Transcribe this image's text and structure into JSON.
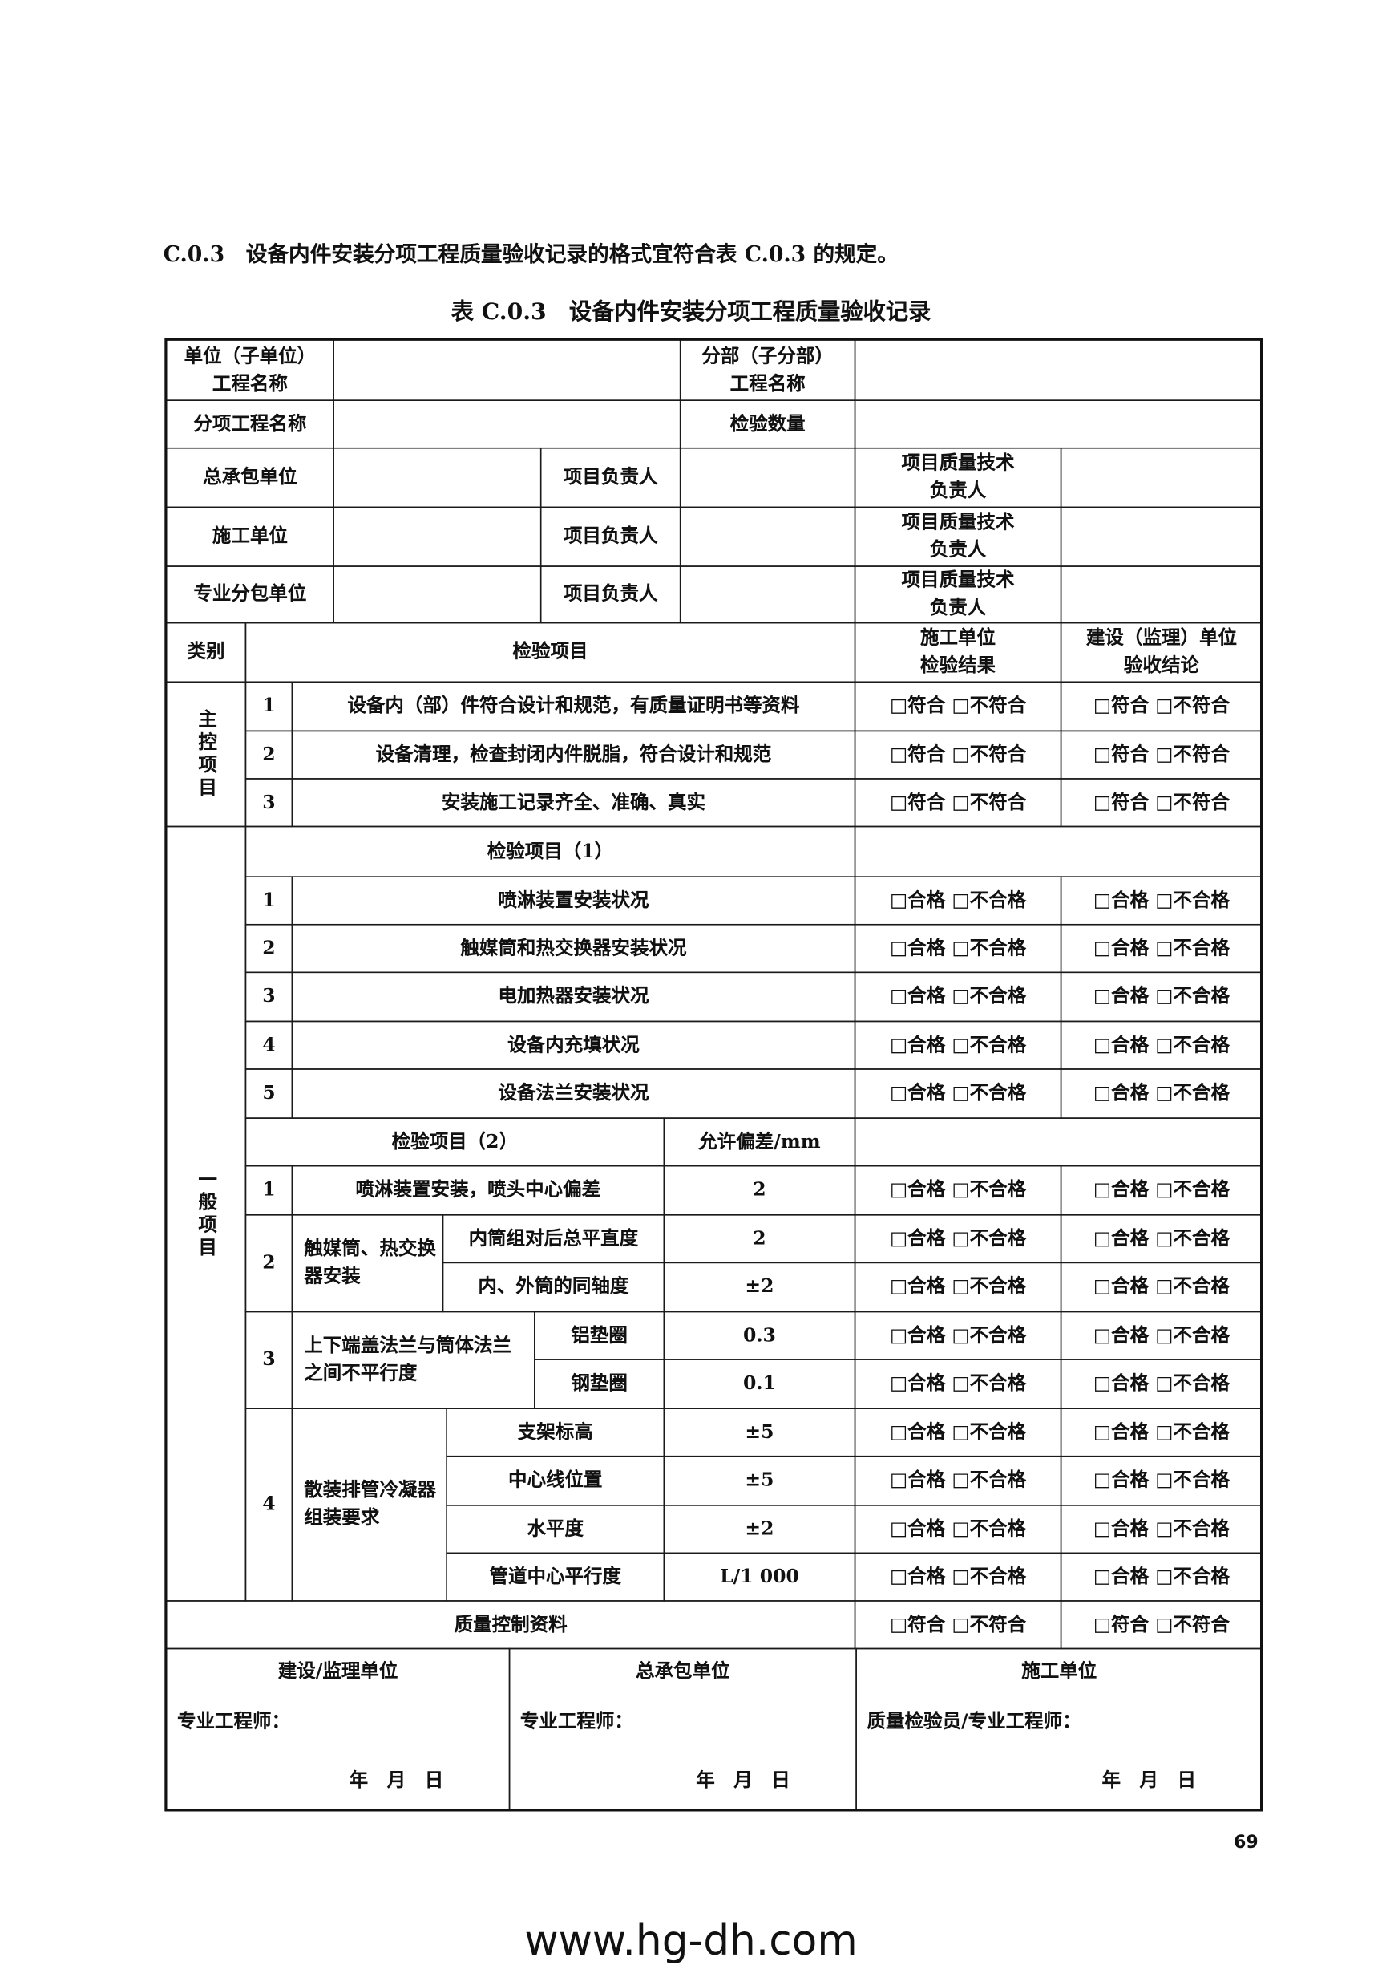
{
  "heading": "C.0.3　设备内件安装分项工程质量验收记录的格式宜符合表 C.0.3 的规定。",
  "table_title": "表 C.0.3　设备内件安装分项工程质量验收记录",
  "header": {
    "unit_label": "单位（子单位）\n工程名称",
    "sub_label": "分部（子分部）\n工程名称",
    "item_name_label": "分项工程名称",
    "qty_label": "检验数量",
    "rows": [
      {
        "org": "总承包单位",
        "pm": "项目负责人",
        "tech": "项目质量技术\n负责人"
      },
      {
        "org": "施工单位",
        "pm": "项目负责人",
        "tech": "项目质量技术\n负责人"
      },
      {
        "org": "专业分包单位",
        "pm": "项目负责人",
        "tech": "项目质量技术\n负责人"
      }
    ]
  },
  "columns": {
    "category": "类别",
    "item": "检验项目",
    "contractor": "施工单位\n检验结果",
    "supervisor": "建设（监理）单位\n验收结论"
  },
  "options": {
    "conform": "□符合 □不符合",
    "qualified": "□合格 □不合格"
  },
  "main": {
    "label": "主控项目",
    "items": [
      {
        "no": "1",
        "text": "设备内（部）件符合设计和规范，有质量证明书等资料"
      },
      {
        "no": "2",
        "text": "设备清理，检查封闭内件脱脂，符合设计和规范"
      },
      {
        "no": "3",
        "text": "安装施工记录齐全、准确、真实"
      }
    ]
  },
  "general": {
    "label": "一般项目",
    "group1": {
      "title": "检验项目（1）",
      "items": [
        {
          "no": "1",
          "text": "喷淋装置安装状况"
        },
        {
          "no": "2",
          "text": "触媒筒和热交换器安装状况"
        },
        {
          "no": "3",
          "text": "电加热器安装状况"
        },
        {
          "no": "4",
          "text": "设备内充填状况"
        },
        {
          "no": "5",
          "text": "设备法兰安装状况"
        }
      ]
    },
    "group2": {
      "title": "检验项目（2）",
      "tolerance_header": "允许偏差/mm",
      "item1": {
        "no": "1",
        "text": "喷淋装置安装，喷头中心偏差",
        "tol": "2"
      },
      "item2": {
        "no": "2",
        "text": "触媒筒、热交换器安装",
        "subs": [
          {
            "text": "内筒组对后总平直度",
            "tol": "2"
          },
          {
            "text": "内、外筒的同轴度",
            "tol": "±2"
          }
        ]
      },
      "item3": {
        "no": "3",
        "text": "上下端盖法兰与筒体法兰之间不平行度",
        "subs": [
          {
            "text": "铝垫圈",
            "tol": "0.3"
          },
          {
            "text": "钢垫圈",
            "tol": "0.1"
          }
        ]
      },
      "item4": {
        "no": "4",
        "text": "散装排管冷凝器组装要求",
        "subs": [
          {
            "text": "支架标高",
            "tol": "±5"
          },
          {
            "text": "中心线位置",
            "tol": "±5"
          },
          {
            "text": "水平度",
            "tol": "±2"
          },
          {
            "text": "管道中心平行度",
            "tol": "L/1 000"
          }
        ]
      }
    }
  },
  "quality_docs": "质量控制资料",
  "signatures": [
    {
      "title": "建设/监理单位",
      "role": "专业工程师：",
      "date": "年　月　日"
    },
    {
      "title": "总承包单位",
      "role": "专业工程师：",
      "date": "年　月　日"
    },
    {
      "title": "施工单位",
      "role": "质量检验员/专业工程师：",
      "date": "年　月　日"
    }
  ],
  "page_number": "69",
  "watermark": "www.hg-dh.com"
}
